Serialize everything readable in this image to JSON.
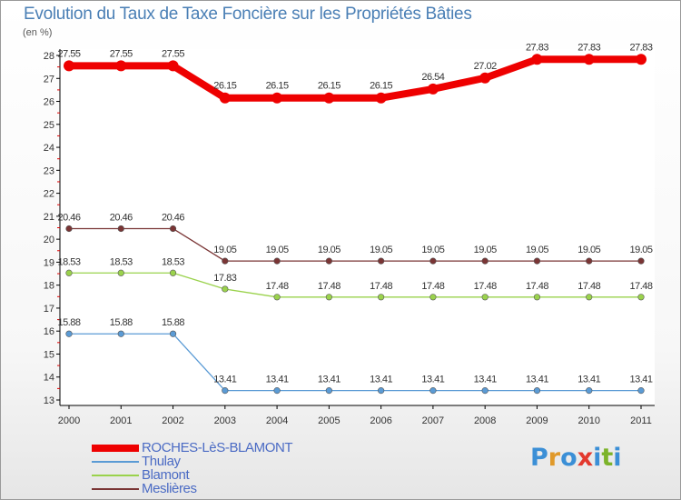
{
  "title": "Evolution du Taux de Taxe Foncière sur les Propriétés Bâties",
  "unit_label": "(en %)",
  "brand": {
    "text": "Proxiti",
    "letters": [
      {
        "ch": "P",
        "color": "#3b8fd6"
      },
      {
        "ch": "r",
        "color": "#e0992a"
      },
      {
        "ch": "o",
        "color": "#3b8fd6"
      },
      {
        "ch": "x",
        "color": "#e3392e"
      },
      {
        "ch": "i",
        "color": "#3b8fd6"
      },
      {
        "ch": "t",
        "color": "#7cb32a"
      },
      {
        "ch": "i",
        "color": "#3b8fd6"
      }
    ]
  },
  "chart_data": {
    "type": "line",
    "title": "Evolution du Taux de Taxe Foncière sur les Propriétés Bâties",
    "ylabel": "(en %)",
    "xlabel": "",
    "ylim": [
      13,
      28
    ],
    "yticks": [
      13,
      14,
      15,
      16,
      17,
      18,
      19,
      20,
      21,
      22,
      23,
      24,
      25,
      26,
      27,
      28
    ],
    "categories": [
      "2000",
      "2001",
      "2002",
      "2003",
      "2004",
      "2005",
      "2006",
      "2007",
      "2008",
      "2009",
      "2010",
      "2011"
    ],
    "series": [
      {
        "name": "ROCHES-LèS-BLAMONT",
        "color": "#ee0000",
        "bold": true,
        "values": [
          27.55,
          27.55,
          27.55,
          26.15,
          26.15,
          26.15,
          26.15,
          26.54,
          27.02,
          27.83,
          27.83,
          27.83
        ]
      },
      {
        "name": "Thulay",
        "color": "#5b9bd5",
        "bold": false,
        "values": [
          15.88,
          15.88,
          15.88,
          13.41,
          13.41,
          13.41,
          13.41,
          13.41,
          13.41,
          13.41,
          13.41,
          13.41
        ]
      },
      {
        "name": "Blamont",
        "color": "#9ad24c",
        "bold": false,
        "values": [
          18.53,
          18.53,
          18.53,
          17.83,
          17.48,
          17.48,
          17.48,
          17.48,
          17.48,
          17.48,
          17.48,
          17.48
        ]
      },
      {
        "name": "Meslières",
        "color": "#7a3535",
        "bold": false,
        "values": [
          20.46,
          20.46,
          20.46,
          19.05,
          19.05,
          19.05,
          19.05,
          19.05,
          19.05,
          19.05,
          19.05,
          19.05
        ]
      }
    ]
  }
}
